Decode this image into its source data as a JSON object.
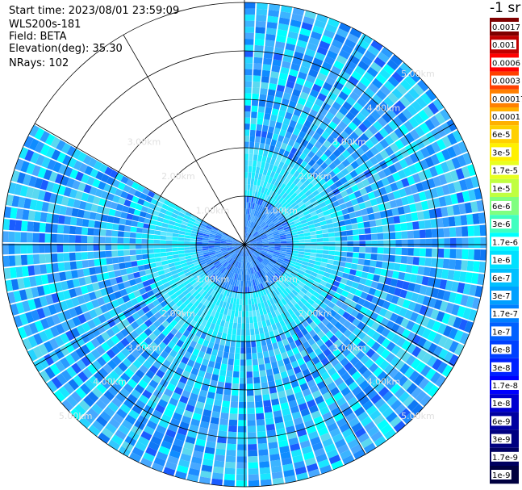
{
  "info": {
    "start_time": "Start time: 2023/08/01 23:59:09",
    "instrument": "WLS200s-181",
    "field": "Field: BETA",
    "elevation": "Elevation(deg): 35.30",
    "nrays": "NRays: 102"
  },
  "colorbar": {
    "unit_label": "-1 sr",
    "ticks": [
      "0.0017",
      "0.001",
      "0.0006",
      "0.0003",
      "0.00017",
      "0.0001",
      "6e-5",
      "3e-5",
      "1.7e-5",
      "1e-5",
      "6e-6",
      "3e-6",
      "1.7e-6",
      "1e-6",
      "6e-7",
      "3e-7",
      "1.7e-7",
      "1e-7",
      "6e-8",
      "3e-8",
      "1.7e-8",
      "1e-8",
      "6e-9",
      "3e-9",
      "1.7e-9",
      "1e-9"
    ],
    "colors": [
      "#7f0000",
      "#c00000",
      "#ff0000",
      "#ff4000",
      "#ff8000",
      "#ffb000",
      "#ffd000",
      "#fff000",
      "#e8ff20",
      "#c0ff40",
      "#80ff80",
      "#40ffc0",
      "#00ffff",
      "#00e0ff",
      "#00c0ff",
      "#00a0ff",
      "#0080ff",
      "#0060ff",
      "#0040ff",
      "#0020ff",
      "#0000ff",
      "#0000d0",
      "#0000a0",
      "#000080",
      "#000060",
      "#000040"
    ]
  },
  "chart_data": {
    "type": "polar-ppi",
    "field": "BETA",
    "elevation_deg": 35.3,
    "n_rays": 102,
    "range_rings_km": [
      1,
      2,
      3,
      4,
      5
    ],
    "ring_labels": [
      "1.00km",
      "2.00km",
      "3.00km",
      "4.00km",
      "5.00km"
    ],
    "max_range_km": 5.0,
    "missing_sector_azimuth_deg": [
      300,
      360
    ],
    "radial_spokes_deg": [
      0,
      30,
      60,
      90,
      120,
      150,
      180,
      210,
      240,
      270,
      300,
      330
    ],
    "dominant_values": "mostly 3e-7 to 3e-8 sr-1 (cyan to light blue), higher ~1e-6 near center"
  },
  "colors": {
    "background": "#ffffff",
    "grid": "#000000",
    "sector_gap": "#ffffff"
  }
}
